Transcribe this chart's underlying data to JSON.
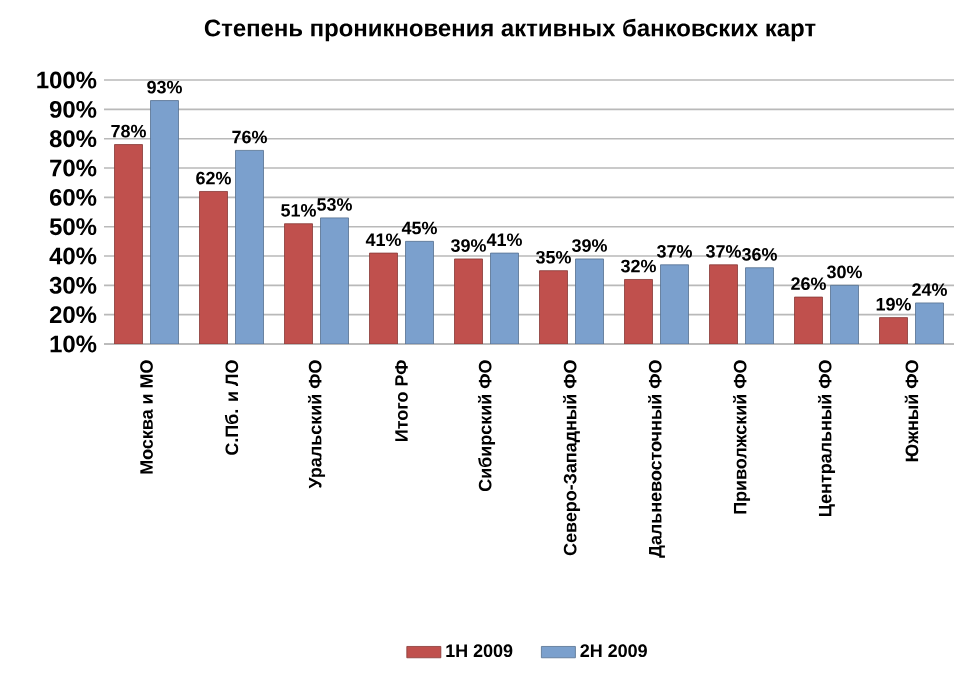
{
  "chart_data": {
    "type": "bar",
    "title": "Степень проникновения активных банковских карт",
    "categories": [
      "Москва и МО",
      "С.Пб. и ЛО",
      "Уральский ФО",
      "Итого РФ",
      "Сибирский ФО",
      "Северо-Западный ФО",
      "Дальневосточный ФО",
      "Приволжский ФО",
      "Центральный ФО",
      "Южный ФО"
    ],
    "series": [
      {
        "name": "1H 2009",
        "color": "#c0504d",
        "values": [
          78,
          62,
          51,
          41,
          39,
          35,
          32,
          37,
          26,
          19
        ],
        "value_labels": [
          "78%",
          "62%",
          "51%",
          "41%",
          "39%",
          "35%",
          "32%",
          "37%",
          "26%",
          "19%"
        ]
      },
      {
        "name": "2H 2009",
        "color": "#7ba0cd",
        "values": [
          93,
          76,
          53,
          45,
          41,
          39,
          37,
          36,
          30,
          24
        ],
        "value_labels": [
          "93%",
          "76%",
          "53%",
          "45%",
          "41%",
          "39%",
          "37%",
          "36%",
          "30%",
          "24%"
        ]
      }
    ],
    "ylim": [
      10,
      100
    ],
    "yticks": [
      {
        "value": 10,
        "label": "10%"
      },
      {
        "value": 20,
        "label": "20%"
      },
      {
        "value": 30,
        "label": "30%"
      },
      {
        "value": 40,
        "label": "40%"
      },
      {
        "value": 50,
        "label": "50%"
      },
      {
        "value": 60,
        "label": "60%"
      },
      {
        "value": 70,
        "label": "70%"
      },
      {
        "value": 80,
        "label": "80%"
      },
      {
        "value": 90,
        "label": "90%"
      },
      {
        "value": 100,
        "label": "100%"
      }
    ],
    "grid": "y",
    "legend": "bottom"
  }
}
